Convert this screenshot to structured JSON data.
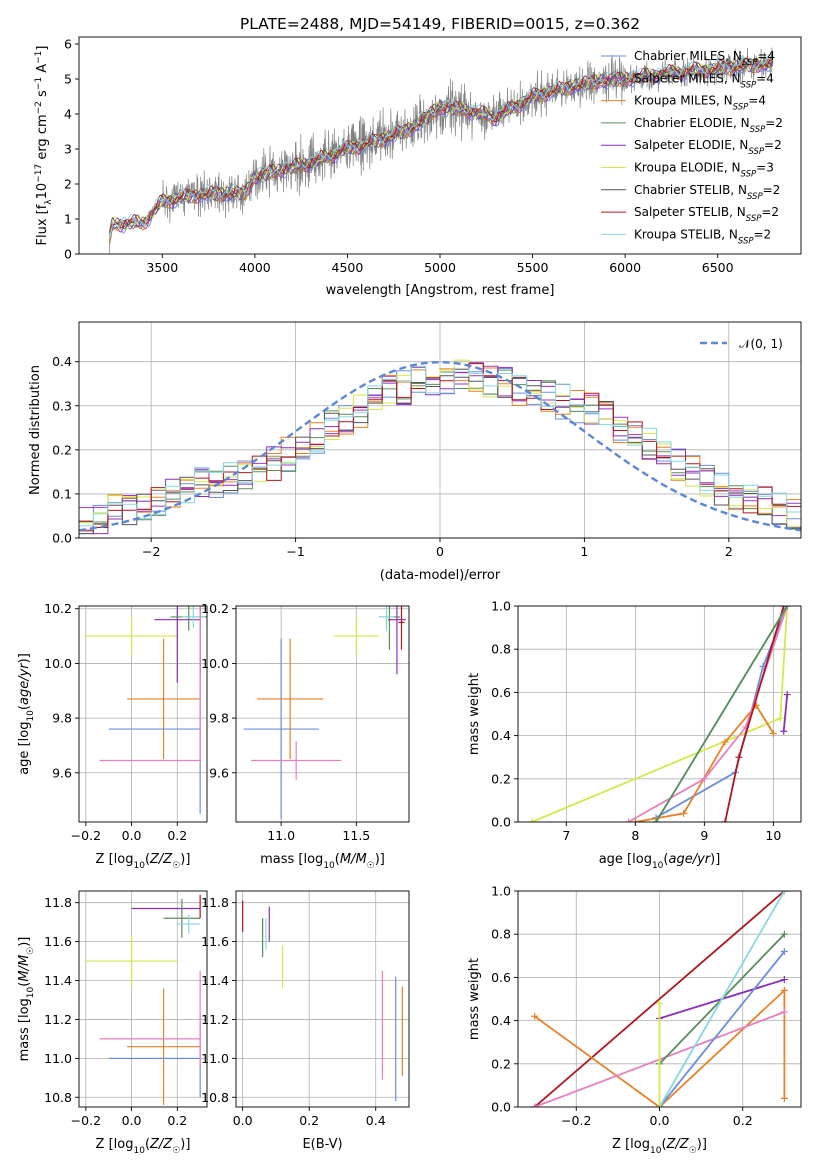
{
  "figure_title": "PLATE=2488, MJD=54149, FIBERID=0015, z=0.362",
  "colors": [
    "#6a8fe0",
    "#9b35c0",
    "#e88025",
    "#5a8c5a",
    "#8a2fb8",
    "#d4e84d",
    "#555555",
    "#b0151e",
    "#86d7e3",
    "#e87fbf"
  ],
  "chart_data": [
    {
      "id": "spectrum",
      "type": "line",
      "title": "PLATE=2488, MJD=54149, FIBERID=0015, z=0.362",
      "xlabel": "wavelength [Angstrom, rest frame]",
      "ylabel": "Flux [f_λ 10^-17 erg cm^-2 s^-1 A^-1]",
      "xlim": [
        3050,
        6950
      ],
      "ylim": [
        0,
        6.2
      ],
      "xticks": [
        3500,
        4000,
        4500,
        5000,
        5500,
        6000,
        6500
      ],
      "yticks": [
        0,
        1,
        2,
        3,
        4,
        5,
        6
      ],
      "data_series": {
        "name": "data",
        "color": "#808080",
        "x_range": [
          3200,
          6800
        ]
      },
      "continuum": {
        "x": [
          3200,
          3230,
          3400,
          3500,
          3700,
          3950,
          4000,
          4100,
          4300,
          4500,
          4700,
          4850,
          5000,
          5150,
          5300,
          5500,
          5650,
          5800,
          6000,
          6200,
          6400,
          6600,
          6800
        ],
        "y": [
          0.0,
          0.85,
          0.9,
          1.5,
          1.7,
          1.75,
          2.2,
          2.35,
          2.6,
          3.0,
          3.3,
          3.6,
          4.2,
          4.1,
          3.9,
          4.5,
          4.7,
          4.9,
          5.0,
          5.15,
          5.25,
          5.35,
          5.45
        ]
      },
      "legend": [
        {
          "label": "Chabrier MILES, N",
          "sub": "SSP",
          "suffix": "=4",
          "color": "#6a8fe0"
        },
        {
          "label": "Salpeter MILES, N",
          "sub": "SSP",
          "suffix": "=4",
          "color": "#9b35c0"
        },
        {
          "label": "Kroupa MILES, N",
          "sub": "SSP",
          "suffix": "=4",
          "color": "#e88025"
        },
        {
          "label": "Chabrier ELODIE, N",
          "sub": "SSP",
          "suffix": "=2",
          "color": "#5a8c5a"
        },
        {
          "label": "Salpeter ELODIE, N",
          "sub": "SSP",
          "suffix": "=2",
          "color": "#8a2fb8"
        },
        {
          "label": "Kroupa ELODIE, N",
          "sub": "SSP",
          "suffix": "=3",
          "color": "#d4e84d"
        },
        {
          "label": "Chabrier STELIB, N",
          "sub": "SSP",
          "suffix": "=2",
          "color": "#555555"
        },
        {
          "label": "Salpeter STELIB, N",
          "sub": "SSP",
          "suffix": "=2",
          "color": "#b0151e"
        },
        {
          "label": "Kroupa STELIB, N",
          "sub": "SSP",
          "suffix": "=2",
          "color": "#86d7e3"
        }
      ]
    },
    {
      "id": "residuals",
      "type": "line",
      "xlabel": "(data-model)/error",
      "ylabel": "Normed distribution",
      "xlim": [
        -2.5,
        2.5
      ],
      "ylim": [
        0,
        0.49
      ],
      "xticks": [
        -2,
        -1,
        0,
        1,
        2
      ],
      "yticks": [
        0.0,
        0.1,
        0.2,
        0.3,
        0.4
      ],
      "grid": true,
      "legend_label": "𝒩(0, 1)",
      "legend_position": "top-right",
      "histogram_bins": [
        -2.5,
        -2.4,
        -2.3,
        -2.2,
        -2.1,
        -2.0,
        -1.9,
        -1.8,
        -1.7,
        -1.6,
        -1.5,
        -1.4,
        -1.3,
        -1.2,
        -1.1,
        -1.0,
        -0.9,
        -0.8,
        -0.7,
        -0.6,
        -0.5,
        -0.4,
        -0.3,
        -0.2,
        -0.1,
        0.0,
        0.1,
        0.2,
        0.3,
        0.4,
        0.5,
        0.6,
        0.7,
        0.8,
        0.9,
        1.0,
        1.1,
        1.2,
        1.3,
        1.4,
        1.5,
        1.6,
        1.7,
        1.8,
        1.9,
        2.0,
        2.1,
        2.2,
        2.3,
        2.4,
        2.5
      ],
      "histogram_mean": [
        0.03,
        0.04,
        0.06,
        0.07,
        0.08,
        0.09,
        0.1,
        0.11,
        0.12,
        0.13,
        0.14,
        0.15,
        0.16,
        0.17,
        0.19,
        0.21,
        0.23,
        0.25,
        0.27,
        0.29,
        0.31,
        0.33,
        0.34,
        0.35,
        0.36,
        0.36,
        0.37,
        0.37,
        0.36,
        0.35,
        0.34,
        0.33,
        0.32,
        0.31,
        0.3,
        0.29,
        0.27,
        0.25,
        0.23,
        0.21,
        0.19,
        0.17,
        0.15,
        0.13,
        0.11,
        0.1,
        0.09,
        0.08,
        0.07,
        0.06
      ]
    },
    {
      "id": "age_vs_Z",
      "type": "scatter",
      "xlabel": "Z [log10(Z/Z☉)]",
      "ylabel": "age [log10(age/yr)]",
      "xlim": [
        -0.23,
        0.33
      ],
      "ylim": [
        9.42,
        10.21
      ],
      "xticks": [
        -0.2,
        0.0,
        0.2
      ],
      "yticks": [
        9.6,
        9.8,
        10.0,
        10.2
      ],
      "grid": true,
      "points": [
        {
          "x": 0.0,
          "y": 10.1,
          "xerr": 0.2,
          "yerr": 0.07,
          "color": "#d4e84d"
        },
        {
          "x": 0.14,
          "y": 9.87,
          "xerr": 0.16,
          "yerr": 0.22,
          "color": "#e88025"
        },
        {
          "x": 0.1,
          "y": 9.76,
          "xerr": 0.2,
          "yerr": 0.0,
          "color": "#6a8fe0"
        },
        {
          "x": 0.08,
          "y": 9.645,
          "xerr": 0.22,
          "yerr": 0.0,
          "color": "#e87fbf"
        },
        {
          "x": 0.2,
          "y": 10.16,
          "xerr": 0.1,
          "yerr": 0.23,
          "color": "#8a2fb8"
        },
        {
          "x": 0.25,
          "y": 10.17,
          "xerr": 0.08,
          "yerr": 0.05,
          "color": "#5a8c5a"
        },
        {
          "x": 0.27,
          "y": 10.17,
          "xerr": 0.05,
          "yerr": 0.04,
          "color": "#86d7e3"
        },
        {
          "x": 0.3,
          "y": 10.16,
          "xerr": 0.0,
          "yerr": 0.2,
          "color": "#b0151e"
        },
        {
          "x": 0.3,
          "y": 10.15,
          "xerr": 0.0,
          "yerr": 0.7,
          "color": "#6a8fe0"
        },
        {
          "x": 0.3,
          "y": 10.13,
          "xerr": 0.0,
          "yerr": 0.5,
          "color": "#e87fbf"
        }
      ]
    },
    {
      "id": "age_vs_mass",
      "type": "scatter",
      "xlabel": "mass [log10(M/M☉)]",
      "xlim": [
        10.7,
        11.85
      ],
      "ylim": [
        9.42,
        10.21
      ],
      "xticks": [
        11.0,
        11.5
      ],
      "yticks": [
        9.6,
        9.8,
        10.0,
        10.2
      ],
      "grid": true,
      "points": [
        {
          "x": 11.0,
          "y": 9.76,
          "xerr": 0.25,
          "yerr": 0.33,
          "color": "#6a8fe0"
        },
        {
          "x": 11.06,
          "y": 9.87,
          "xerr": 0.22,
          "yerr": 0.22,
          "color": "#e88025"
        },
        {
          "x": 11.1,
          "y": 9.645,
          "xerr": 0.3,
          "yerr": 0.07,
          "color": "#e87fbf"
        },
        {
          "x": 11.5,
          "y": 10.1,
          "xerr": 0.15,
          "yerr": 0.07,
          "color": "#d4e84d"
        },
        {
          "x": 11.72,
          "y": 10.17,
          "xerr": 0.07,
          "yerr": 0.12,
          "color": "#5a8c5a"
        },
        {
          "x": 11.7,
          "y": 10.17,
          "xerr": 0.05,
          "yerr": 0.05,
          "color": "#86d7e3"
        },
        {
          "x": 11.77,
          "y": 10.16,
          "xerr": 0.06,
          "yerr": 0.2,
          "color": "#8a2fb8"
        },
        {
          "x": 11.8,
          "y": 10.15,
          "xerr": 0.02,
          "yerr": 0.1,
          "color": "#b0151e"
        }
      ]
    },
    {
      "id": "massweight_vs_age",
      "type": "line",
      "xlabel": "age [log10(age/yr)]",
      "ylabel": "mass weight",
      "xlim": [
        6.3,
        10.4
      ],
      "ylim": [
        0,
        1.0
      ],
      "xticks": [
        7,
        8,
        9,
        10
      ],
      "yticks": [
        0.0,
        0.2,
        0.4,
        0.6,
        0.8,
        1.0
      ],
      "grid": true,
      "series": [
        {
          "color": "#d4e84d",
          "x": [
            6.5,
            10.1,
            10.2
          ],
          "y": [
            0.0,
            0.48,
            1.0
          ]
        },
        {
          "color": "#6a8fe0",
          "x": [
            8.3,
            9.45,
            9.85,
            10.2
          ],
          "y": [
            0.02,
            0.23,
            0.72,
            1.0
          ]
        },
        {
          "color": "#e88025",
          "x": [
            8.0,
            8.7,
            9.3,
            9.75,
            10.0
          ],
          "y": [
            0.0,
            0.04,
            0.37,
            0.54,
            0.41
          ]
        },
        {
          "color": "#e87fbf",
          "x": [
            7.9,
            9.0,
            9.6,
            10.2
          ],
          "y": [
            0.0,
            0.2,
            0.44,
            1.0
          ]
        },
        {
          "color": "#b0151e",
          "x": [
            9.3,
            9.5,
            10.15
          ],
          "y": [
            0.0,
            0.3,
            1.0
          ]
        },
        {
          "color": "#86d7e3",
          "x": [
            8.3,
            10.2
          ],
          "y": [
            0.0,
            1.0
          ]
        },
        {
          "color": "#5a8c5a",
          "x": [
            8.3,
            10.2
          ],
          "y": [
            0.0,
            1.0
          ]
        },
        {
          "color": "#8a2fb8",
          "x": [
            10.15,
            10.2
          ],
          "y": [
            0.42,
            0.59
          ]
        }
      ]
    },
    {
      "id": "mass_vs_Z",
      "type": "scatter",
      "xlabel": "Z [log10(Z/Z☉)]",
      "ylabel": "mass [log10(M/M☉)]",
      "xlim": [
        -0.23,
        0.33
      ],
      "ylim": [
        10.75,
        11.86
      ],
      "xticks": [
        -0.2,
        0.0,
        0.2
      ],
      "yticks": [
        10.8,
        11.0,
        11.2,
        11.4,
        11.6,
        11.8
      ],
      "grid": true,
      "points": [
        {
          "x": 0.0,
          "y": 11.5,
          "xerr": 0.2,
          "yerr": 0.13,
          "color": "#d4e84d"
        },
        {
          "x": 0.14,
          "y": 11.06,
          "xerr": 0.16,
          "yerr": 0.3,
          "color": "#e88025"
        },
        {
          "x": 0.1,
          "y": 11.0,
          "xerr": 0.2,
          "yerr": 0.0,
          "color": "#6a8fe0"
        },
        {
          "x": 0.08,
          "y": 11.1,
          "xerr": 0.22,
          "yerr": 0.0,
          "color": "#e87fbf"
        },
        {
          "x": 0.15,
          "y": 11.77,
          "xerr": 0.15,
          "yerr": 0.0,
          "color": "#8a2fb8"
        },
        {
          "x": 0.22,
          "y": 11.72,
          "xerr": 0.08,
          "yerr": 0.1,
          "color": "#5a8c5a"
        },
        {
          "x": 0.25,
          "y": 11.69,
          "xerr": 0.05,
          "yerr": 0.05,
          "color": "#86d7e3"
        },
        {
          "x": 0.3,
          "y": 11.78,
          "xerr": 0.0,
          "yerr": 0.06,
          "color": "#b0151e"
        },
        {
          "x": 0.3,
          "y": 11.0,
          "xerr": 0.0,
          "yerr": 0.2,
          "color": "#6a8fe0"
        },
        {
          "x": 0.3,
          "y": 11.2,
          "xerr": 0.0,
          "yerr": 0.25,
          "color": "#e87fbf"
        }
      ]
    },
    {
      "id": "mass_vs_ebv",
      "type": "scatter",
      "xlabel": "E(B-V)",
      "xlim": [
        -0.02,
        0.5
      ],
      "ylim": [
        10.75,
        11.86
      ],
      "xticks": [
        0.0,
        0.2,
        0.4
      ],
      "yticks": [
        10.8,
        11.0,
        11.2,
        11.4,
        11.6,
        11.8
      ],
      "grid": true,
      "points": [
        {
          "x": 0.0,
          "y": 11.73,
          "yerr": 0.08,
          "color": "#b0151e"
        },
        {
          "x": 0.06,
          "y": 11.62,
          "yerr": 0.1,
          "color": "#5a8c5a"
        },
        {
          "x": 0.07,
          "y": 11.64,
          "yerr": 0.08,
          "color": "#86d7e3"
        },
        {
          "x": 0.08,
          "y": 11.69,
          "yerr": 0.09,
          "color": "#8a2fb8"
        },
        {
          "x": 0.12,
          "y": 11.47,
          "yerr": 0.11,
          "color": "#d4e84d"
        },
        {
          "x": 0.42,
          "y": 11.17,
          "yerr": 0.28,
          "color": "#e87fbf"
        },
        {
          "x": 0.46,
          "y": 11.1,
          "yerr": 0.32,
          "color": "#6a8fe0"
        },
        {
          "x": 0.48,
          "y": 11.14,
          "yerr": 0.23,
          "color": "#e88025"
        }
      ]
    },
    {
      "id": "massweight_vs_Z",
      "type": "line",
      "xlabel": "Z [log10(Z/Z☉)]",
      "ylabel": "mass weight",
      "xlim": [
        -0.34,
        0.34
      ],
      "ylim": [
        0,
        1.0
      ],
      "xticks": [
        -0.2,
        0.0,
        0.2
      ],
      "yticks": [
        0.0,
        0.2,
        0.4,
        0.6,
        0.8,
        1.0
      ],
      "grid": true,
      "series": [
        {
          "color": "#b0151e",
          "x": [
            -0.3,
            0.3
          ],
          "y": [
            0.0,
            1.0
          ]
        },
        {
          "color": "#e88025",
          "x": [
            -0.3,
            0.0,
            0.3,
            0.3
          ],
          "y": [
            0.42,
            0.0,
            0.54,
            0.04
          ]
        },
        {
          "color": "#e87fbf",
          "x": [
            -0.3,
            0.3
          ],
          "y": [
            0.0,
            0.44
          ]
        },
        {
          "color": "#8a2fb8",
          "x": [
            0.0,
            0.3
          ],
          "y": [
            0.41,
            0.59
          ]
        },
        {
          "color": "#5a8c5a",
          "x": [
            0.0,
            0.3
          ],
          "y": [
            0.2,
            0.8
          ]
        },
        {
          "color": "#6a8fe0",
          "x": [
            0.0,
            0.3
          ],
          "y": [
            0.0,
            0.72
          ]
        },
        {
          "color": "#86d7e3",
          "x": [
            0.0,
            0.3
          ],
          "y": [
            0.0,
            1.0
          ]
        },
        {
          "color": "#d4e84d",
          "x": [
            0.0,
            0.0
          ],
          "y": [
            0.0,
            0.48
          ]
        }
      ]
    }
  ]
}
